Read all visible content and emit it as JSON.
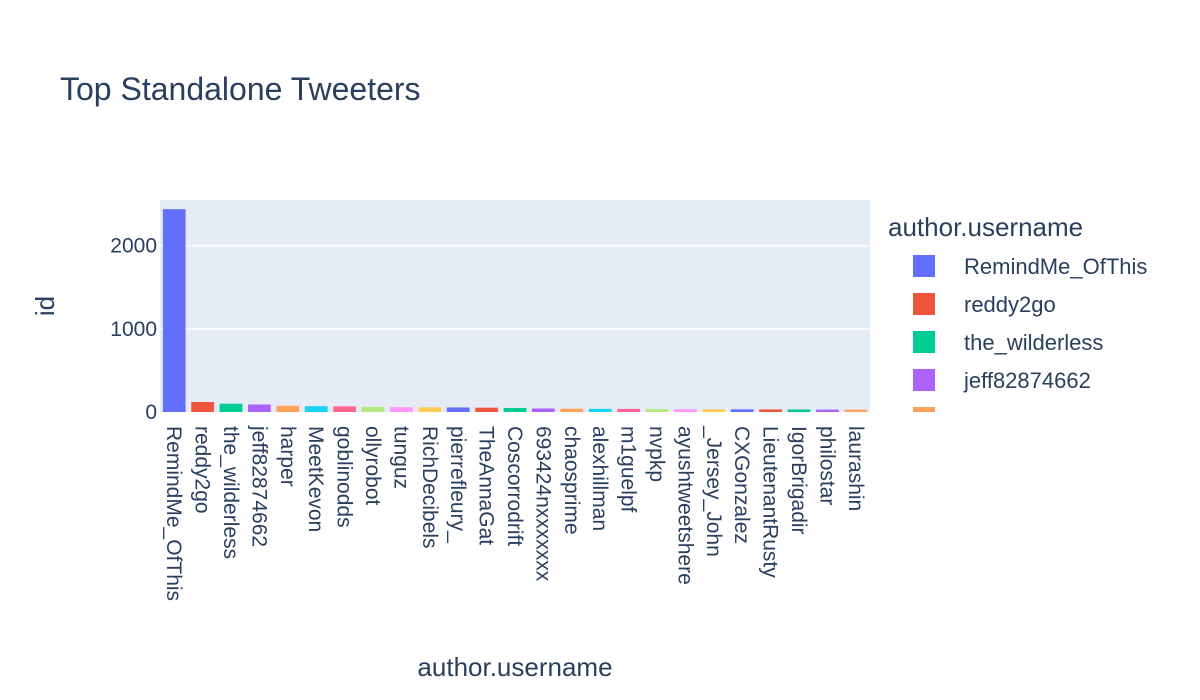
{
  "chart_data": {
    "type": "bar",
    "title": "Top Standalone Tweeters",
    "xlabel": "author.username",
    "ylabel": "id",
    "ylim": [
      0,
      2550
    ],
    "yticks": [
      0,
      1000,
      2000
    ],
    "ytick_labels": [
      "0",
      "1000",
      "2000"
    ],
    "grid": true,
    "legend": {
      "title": "author.username",
      "placement": "right",
      "entries": [
        "RemindMe_OfThis",
        "reddy2go",
        "the_wilderless",
        "jeff82874662",
        "."
      ]
    },
    "categories": [
      "RemindMe_OfThis",
      "reddy2go",
      "the_wilderless",
      "jeff82874662",
      "harper",
      "MeetKevon",
      "goblinodds",
      "ollyrobot",
      "tunguz",
      "RichDecibels",
      "pierrefleury_",
      "TheAnnaGat",
      "Coscorrodrift",
      "693424nxxxxxxx",
      "chaosprime",
      "alexhillman",
      "m1guelpf",
      "nvpkp",
      "ayushtweetshere",
      "_Jersey_John",
      "CXGonzalez",
      "LieutenantRusty",
      "IgorBrigadir",
      "philostar",
      "laurashin"
    ],
    "values": [
      2440,
      120,
      100,
      90,
      75,
      70,
      68,
      62,
      58,
      56,
      55,
      52,
      48,
      42,
      40,
      38,
      37,
      36,
      33,
      32,
      32,
      31,
      30,
      29,
      28
    ],
    "colors": [
      "#636efa",
      "#EF553B",
      "#00cc96",
      "#ab63fa",
      "#FFA15A",
      "#19d3f3",
      "#FF6692",
      "#B6E880",
      "#FF97FF",
      "#FECB52",
      "#636efa",
      "#EF553B",
      "#00cc96",
      "#ab63fa",
      "#FFA15A",
      "#19d3f3",
      "#FF6692",
      "#B6E880",
      "#FF97FF",
      "#FECB52",
      "#636efa",
      "#EF553B",
      "#00cc96",
      "#ab63fa",
      "#FFA15A"
    ]
  }
}
